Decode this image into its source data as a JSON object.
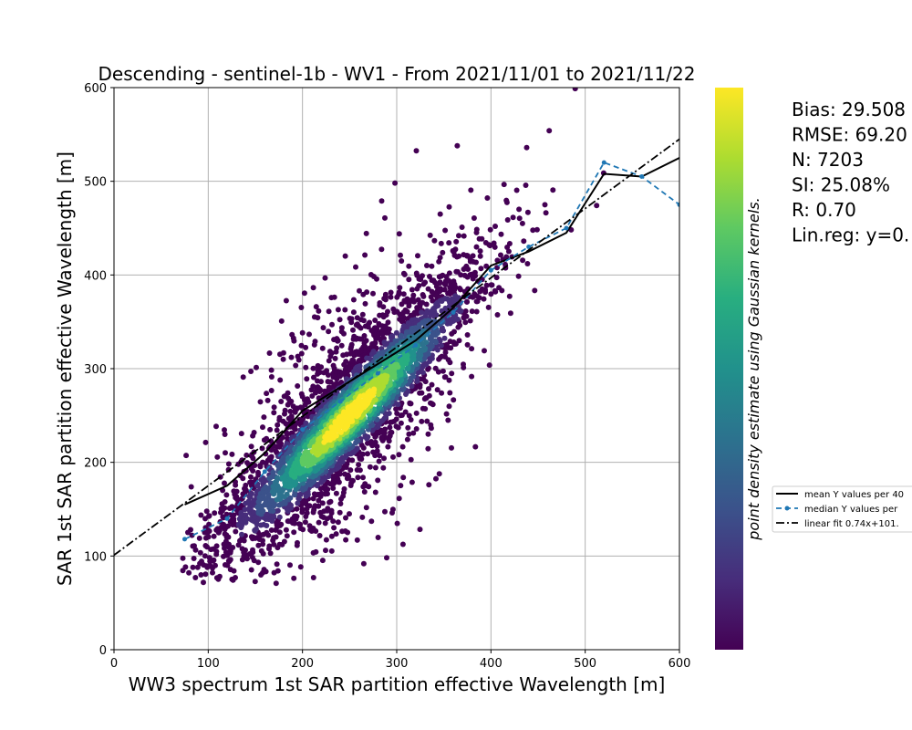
{
  "chart_data": {
    "type": "scatter",
    "title": "Descending - sentinel-1b - WV1 - From 2021/11/01 to 2021/11/22",
    "xlabel": "WW3 spectrum 1st SAR partition effective Wavelength [m]",
    "ylabel": "SAR 1st SAR partition effective Wavelength [m]",
    "xlim": [
      0,
      600
    ],
    "ylim": [
      0,
      600
    ],
    "xticks": [
      "0",
      "100",
      "200",
      "300",
      "400",
      "500",
      "600"
    ],
    "yticks": [
      "0",
      "100",
      "200",
      "300",
      "400",
      "500",
      "600"
    ],
    "grid": true,
    "colormap": "viridis",
    "colorbar_label": "point density estimate using Gaussian kernels.",
    "stats_lines": [
      "Bias: 29.508",
      "RMSE: 69.20",
      "N: 7203",
      "SI: 25.08%",
      "R: 0.70",
      "Lin.reg: y=0."
    ],
    "legend_position": "right, outside plot",
    "series": [
      {
        "name": "mean Y values per 40",
        "style": "solid black",
        "x": [
          75,
          120,
          160,
          200,
          240,
          280,
          320,
          360,
          400,
          440,
          480,
          520,
          560,
          600
        ],
        "y": [
          155,
          175,
          210,
          255,
          280,
          305,
          330,
          365,
          410,
          425,
          445,
          508,
          505,
          525
        ]
      },
      {
        "name": "median Y values per",
        "style": "dashed blue with markers",
        "x": [
          75,
          120,
          160,
          200,
          240,
          280,
          320,
          360,
          400,
          440,
          480,
          520,
          560,
          600
        ],
        "y": [
          118,
          140,
          190,
          235,
          265,
          295,
          325,
          360,
          405,
          430,
          450,
          520,
          505,
          475
        ]
      },
      {
        "name": "linear fit 0.74x+101.",
        "style": "dash-dot black",
        "x": [
          0,
          600
        ],
        "y": [
          101,
          545
        ]
      }
    ],
    "scatter_point_count_estimate": 7203
  },
  "colors": {
    "grid": "#b0b0b0",
    "median_line": "#1f77b4",
    "mean_line": "#000000",
    "fit_line": "#000000"
  }
}
